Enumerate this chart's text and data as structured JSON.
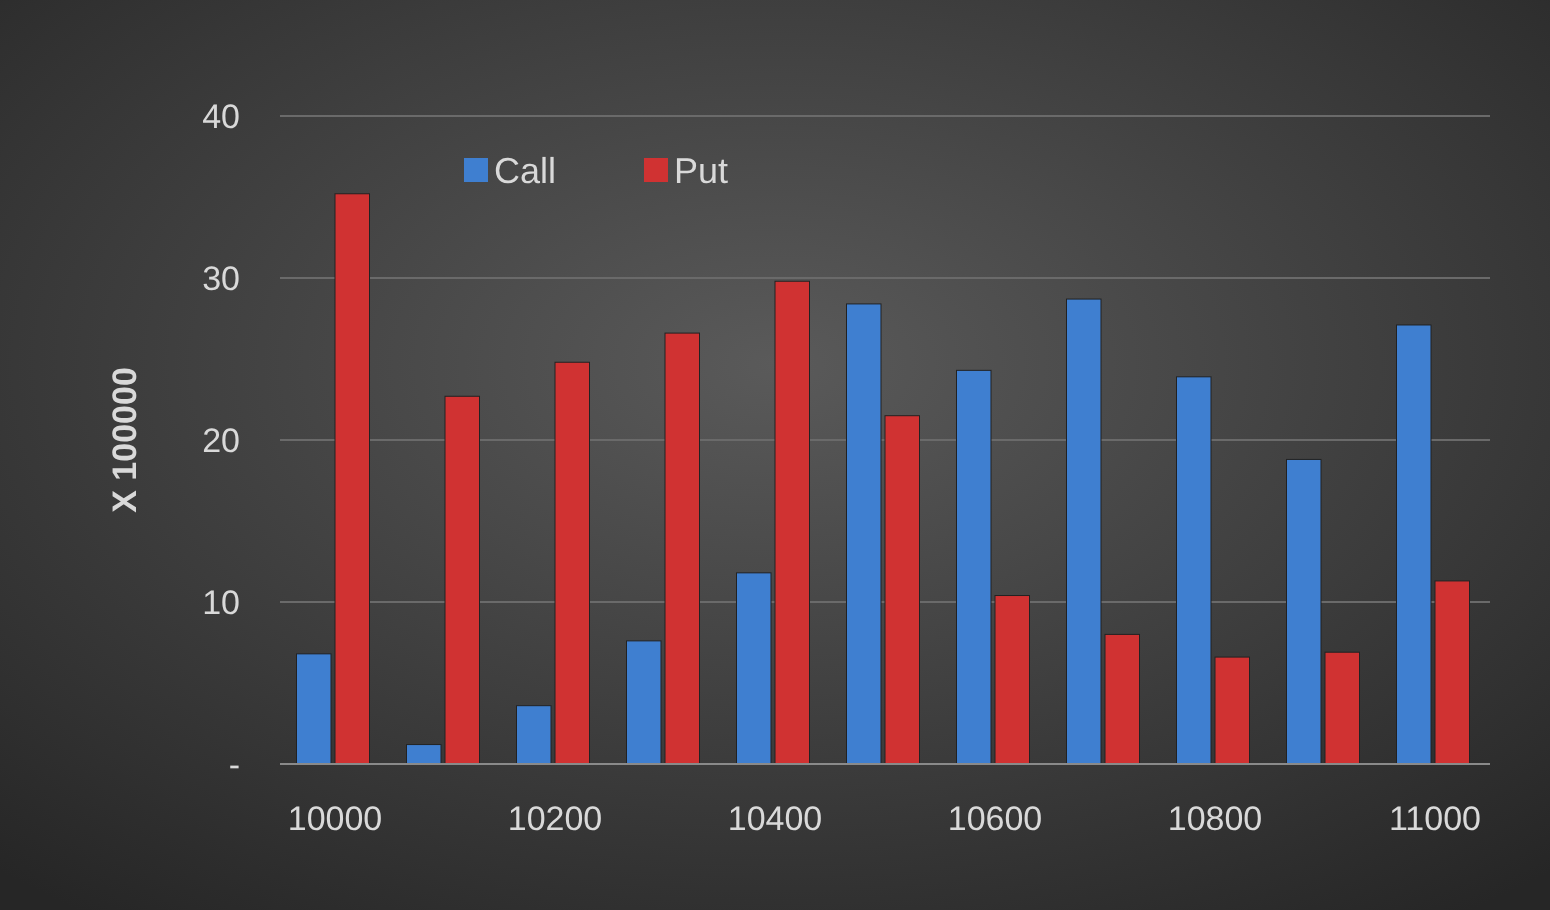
{
  "chart_data": {
    "type": "bar",
    "ylabel": "X 100000",
    "categories": [
      "10000",
      null,
      "10200",
      null,
      "10400",
      null,
      "10600",
      null,
      "10800",
      null,
      "11000"
    ],
    "series": [
      {
        "name": "Call",
        "color": "#3f7fd0",
        "values": [
          6.8,
          1.2,
          3.6,
          7.6,
          11.8,
          28.4,
          24.3,
          28.7,
          23.9,
          18.8,
          27.1
        ]
      },
      {
        "name": "Put",
        "color": "#d03232",
        "values": [
          35.2,
          22.7,
          24.8,
          26.6,
          29.8,
          21.5,
          10.4,
          8.0,
          6.6,
          6.9,
          11.3
        ]
      }
    ],
    "ylim": [
      0,
      40
    ],
    "yticks": [
      {
        "value": 0,
        "label": "-"
      },
      10,
      20,
      30,
      40
    ],
    "grid": "y",
    "legend": "top left"
  }
}
